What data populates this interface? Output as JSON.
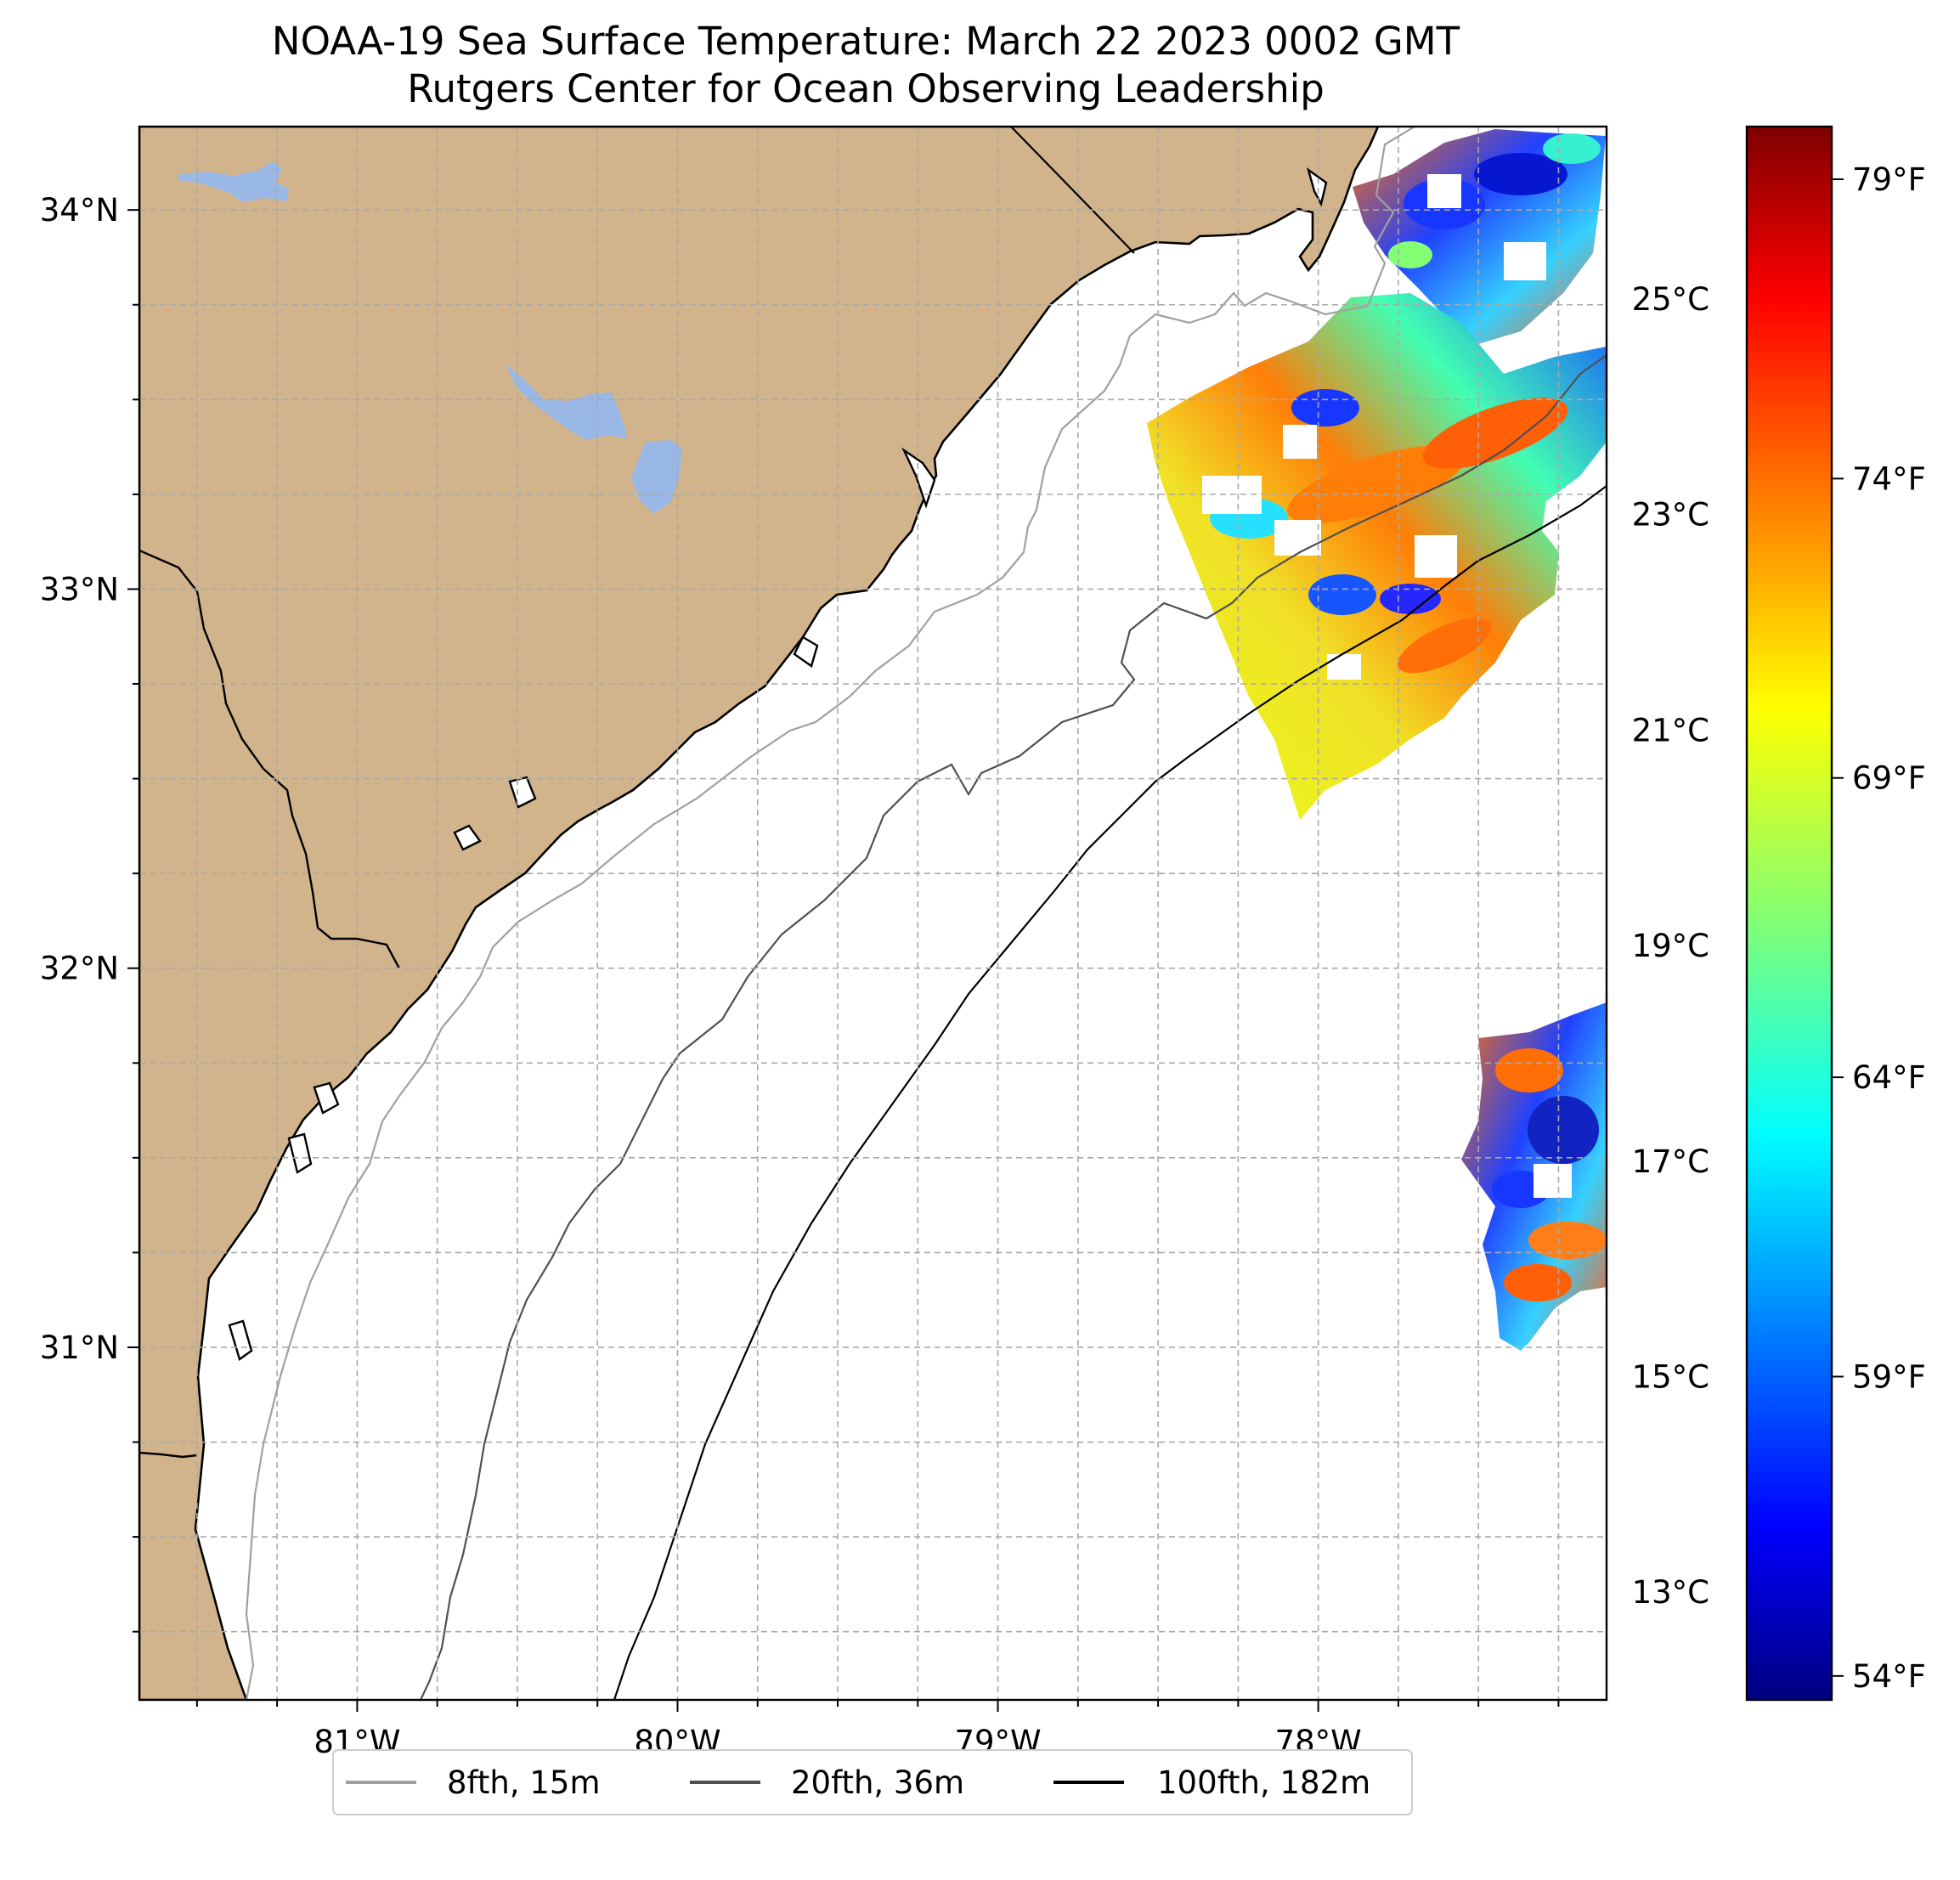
{
  "title": {
    "line1": "NOAA-19 Sea Surface Temperature: March 22 2023 0002 GMT",
    "line2": "Rutgers Center for Ocean Observing Leadership"
  },
  "map": {
    "lon_range": [
      -81.68,
      -77.1
    ],
    "lat_range": [
      30.07,
      34.22
    ],
    "lon_ticks": [
      {
        "value": -81,
        "label": "81°W"
      },
      {
        "value": -80,
        "label": "80°W"
      },
      {
        "value": -79,
        "label": "79°W"
      },
      {
        "value": -78,
        "label": "78°W"
      }
    ],
    "lat_ticks": [
      {
        "value": 34,
        "label": "34°N"
      },
      {
        "value": 33,
        "label": "33°N"
      },
      {
        "value": 32,
        "label": "32°N"
      },
      {
        "value": 31,
        "label": "31°N"
      }
    ],
    "minor_grid": {
      "lon_step": 0.25,
      "lat_step": 0.25
    },
    "colors": {
      "land": "#d2b48c",
      "water": "#9ab8e6",
      "ocean": "#ffffff",
      "coastline": "#000000",
      "grid": "#a9a9a9"
    },
    "colormap": "jet"
  },
  "colorbar": {
    "celsius_range": [
      12.0,
      26.6
    ],
    "celsius_ticks": [
      {
        "value": 13,
        "label": "13°C"
      },
      {
        "value": 15,
        "label": "15°C"
      },
      {
        "value": 17,
        "label": "17°C"
      },
      {
        "value": 19,
        "label": "19°C"
      },
      {
        "value": 21,
        "label": "21°C"
      },
      {
        "value": 23,
        "label": "23°C"
      },
      {
        "value": 25,
        "label": "25°C"
      }
    ],
    "fahrenheit_ticks": [
      {
        "value": 54,
        "label": "54°F"
      },
      {
        "value": 59,
        "label": "59°F"
      },
      {
        "value": 64,
        "label": "64°F"
      },
      {
        "value": 69,
        "label": "69°F"
      },
      {
        "value": 74,
        "label": "74°F"
      },
      {
        "value": 79,
        "label": "79°F"
      }
    ]
  },
  "legend": {
    "items": [
      {
        "label": "8fth, 15m",
        "color": "#a0a0a0"
      },
      {
        "label": "20fth, 36m",
        "color": "#505050"
      },
      {
        "label": "100fth, 182m",
        "color": "#000000"
      }
    ]
  }
}
